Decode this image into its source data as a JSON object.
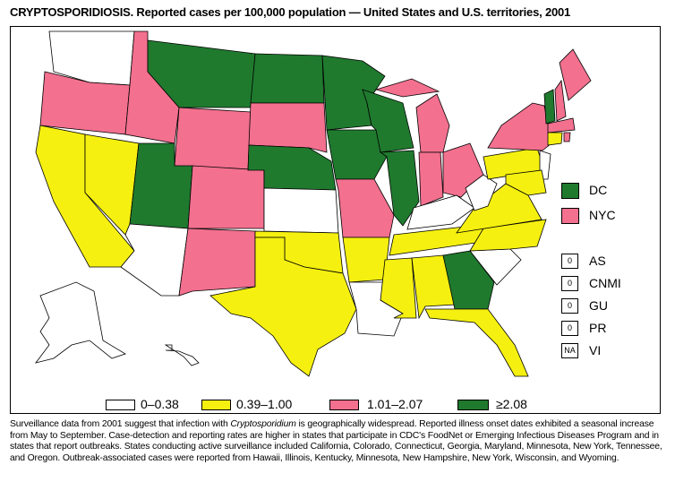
{
  "title": "CRYPTOSPORIDIOSIS. Reported cases per 100,000 population — United States and U.S. territories, 2001",
  "colors": {
    "c0": "#ffffff",
    "c1": "#f5f010",
    "c2": "#f3708f",
    "c3": "#1f7a2e"
  },
  "legend": [
    {
      "label": "0–0.38",
      "cls": "c0"
    },
    {
      "label": "0.39–1.00",
      "cls": "c1"
    },
    {
      "label": "1.01–2.07",
      "cls": "c2"
    },
    {
      "label": "≥2.08",
      "cls": "c3"
    }
  ],
  "inset": [
    {
      "label": "DC",
      "cls": "c3"
    },
    {
      "label": "NYC",
      "cls": "c2"
    }
  ],
  "territories": [
    {
      "value": "0",
      "label": "AS"
    },
    {
      "value": "0",
      "label": "CNMI"
    },
    {
      "value": "0",
      "label": "GU"
    },
    {
      "value": "0",
      "label": "PR"
    },
    {
      "value": "NA",
      "label": "VI"
    }
  ],
  "states": {
    "WA": "c0",
    "OR": "c2",
    "CA": "c1",
    "NV": "c1",
    "ID": "c2",
    "MT": "c3",
    "WY": "c2",
    "UT": "c3",
    "AZ": "c0",
    "CO": "c2",
    "NM": "c2",
    "ND": "c3",
    "SD": "c2",
    "NE": "c3",
    "KS": "c0",
    "OK": "c1",
    "TX": "c1",
    "MN": "c3",
    "IA": "c3",
    "MO": "c2",
    "AR": "c1",
    "LA": "c0",
    "WI": "c3",
    "IL": "c3",
    "MI": "c2",
    "MIU": "c2",
    "IN": "c2",
    "OH": "c2",
    "KY": "c0",
    "TN": "c1",
    "MS": "c1",
    "AL": "c1",
    "GA": "c3",
    "FL": "c1",
    "SC": "c0",
    "NC": "c1",
    "VA": "c1",
    "WV": "c0",
    "PA": "c1",
    "NY": "c2",
    "VT": "c3",
    "NH": "c2",
    "ME": "c2",
    "MA": "c2",
    "CT": "c1",
    "RI": "c2",
    "NJ": "c0",
    "MD": "c1",
    "AK": "c0",
    "HI": "c0"
  },
  "footnote_parts": [
    "Surveillance data from 2001 suggest that infection with ",
    "Cryptosporidium",
    " is geographically widespread. Reported illness onset dates exhibited a seasonal increase from May to September. Case-detection and reporting rates are higher in states that participate in CDC's FoodNet or Emerging Infectious Diseases Program and in states that report outbreaks. States conducting active surveillance included California, Colorado, Connecticut, Georgia, Maryland, Minnesota, New York, Tennessee, and Oregon. Outbreak-associated cases were reported from Hawaii, Illinois, Kentucky, Minnesota, New Hampshire, New York, Wisconsin, and Wyoming."
  ]
}
